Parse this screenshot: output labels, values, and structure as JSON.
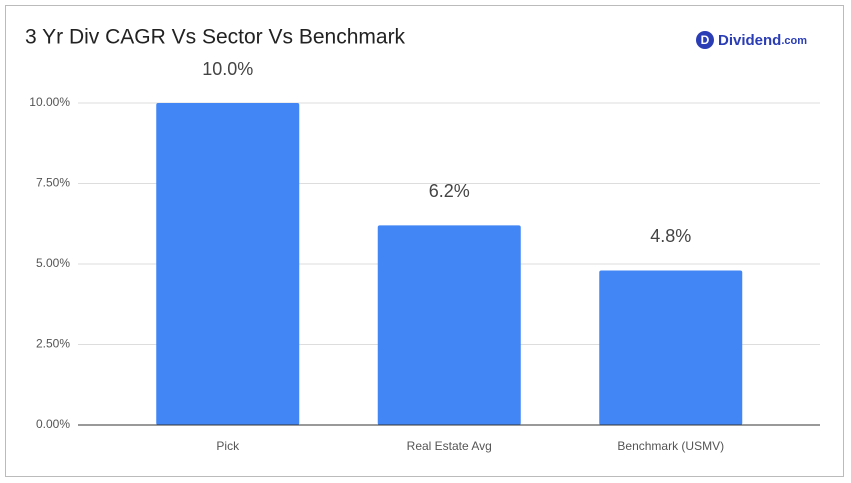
{
  "chart_data": {
    "type": "bar",
    "title": "3 Yr Div CAGR Vs Sector Vs Benchmark",
    "categories": [
      "Pick",
      "Real Estate Avg",
      "Benchmark (USMV)"
    ],
    "values": [
      10.0,
      6.2,
      4.8
    ],
    "value_labels": [
      "10.0%",
      "6.2%",
      "4.8%"
    ],
    "color": "#4285f4",
    "ylim": [
      0,
      10
    ],
    "yticks": [
      {
        "value": 0,
        "label": "0.00%"
      },
      {
        "value": 2.5,
        "label": "2.50%"
      },
      {
        "value": 5,
        "label": "5.00%"
      },
      {
        "value": 7.5,
        "label": "7.50%"
      },
      {
        "value": 10,
        "label": "10.00%"
      }
    ],
    "grid": true
  },
  "logo": {
    "icon": "D",
    "name": "Dividend",
    "suffix": ".com"
  }
}
